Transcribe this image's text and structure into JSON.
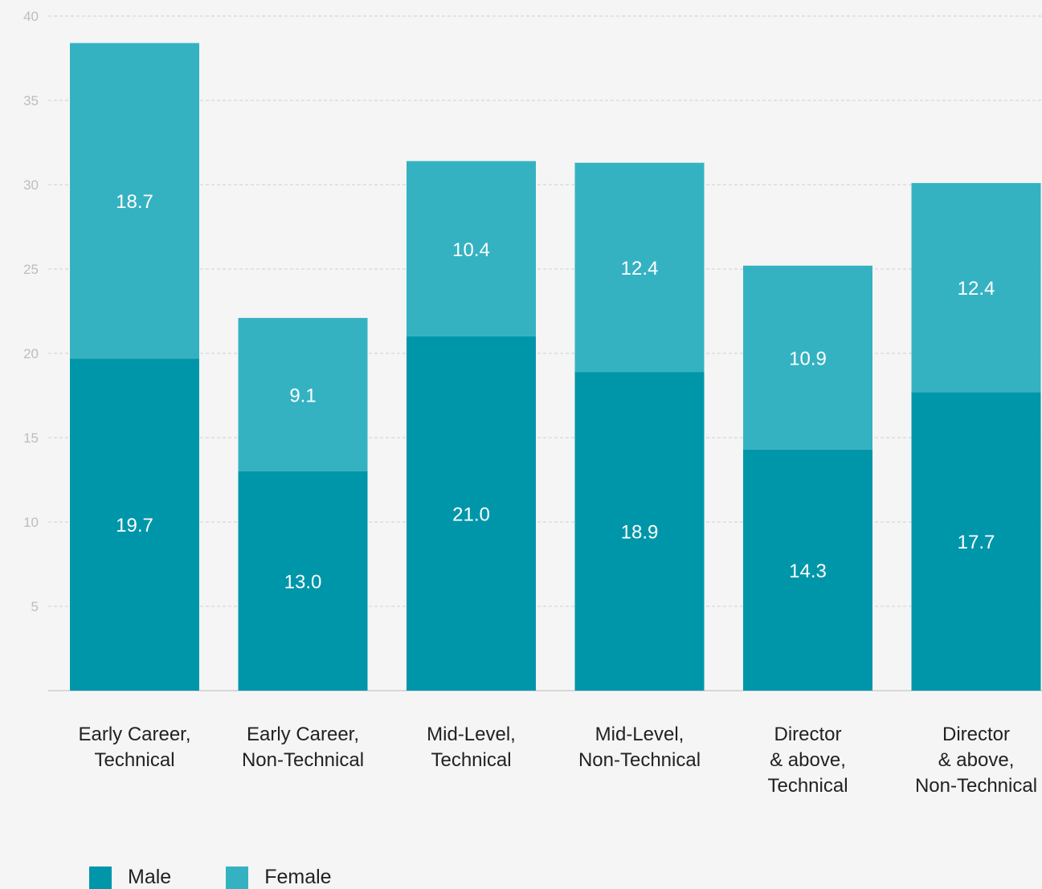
{
  "chart_data": {
    "type": "bar",
    "stacked": true,
    "categories": [
      [
        "Early Career,",
        "Technical"
      ],
      [
        "Early Career,",
        "Non-Technical"
      ],
      [
        "Mid-Level,",
        "Technical"
      ],
      [
        "Mid-Level,",
        "Non-Technical"
      ],
      [
        "Director",
        "& above,",
        "Technical"
      ],
      [
        "Director",
        "& above,",
        "Non-Technical"
      ]
    ],
    "series": [
      {
        "name": "Male",
        "color": "#0096aa",
        "values": [
          19.7,
          13.0,
          21.0,
          18.9,
          14.3,
          17.7
        ],
        "labels": [
          "19.7",
          "13.0",
          "21.0",
          "18.9",
          "14.3",
          "17.7"
        ]
      },
      {
        "name": "Female",
        "color": "#35b2c2",
        "values": [
          18.7,
          9.1,
          10.4,
          12.4,
          10.9,
          12.4
        ],
        "labels": [
          "18.7",
          "9.1",
          "10.4",
          "12.4",
          "10.9",
          "12.4"
        ]
      }
    ],
    "y_ticks": [
      "5",
      "10",
      "15",
      "20",
      "25",
      "30",
      "35",
      "40"
    ],
    "ylim": [
      0,
      40
    ],
    "grid": true,
    "legend_position": "bottom-left"
  },
  "legend": {
    "male_label": "Male",
    "female_label": "Female"
  }
}
